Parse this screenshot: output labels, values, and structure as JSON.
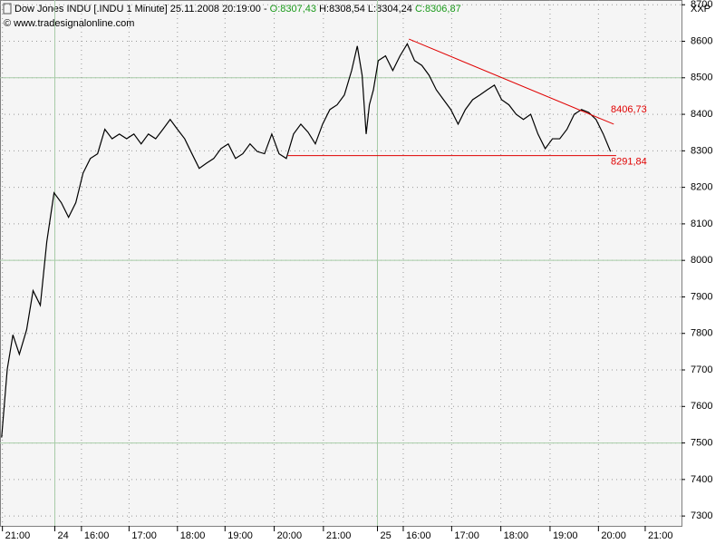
{
  "chart_data": {
    "type": "line",
    "title": "Dow Jones INDU [.INDU  1 Minute] 25.11.2008 20:19:00 -",
    "ohlc_open": "O:8307,43",
    "ohlc_hl": "H:8308,54 L:8304,24",
    "ohlc_close": "C:8306,87",
    "subtitle": "© www.tradesignalonline.com",
    "corner_label": "XXP",
    "color": "#000000",
    "x": [
      -1,
      6,
      13,
      21,
      30,
      38,
      47,
      55,
      64,
      73,
      82,
      91,
      100,
      109,
      118,
      127,
      136,
      145,
      154,
      163,
      172,
      181,
      190,
      199,
      208,
      217,
      226,
      235,
      244,
      253,
      262,
      271,
      280,
      289,
      298,
      307,
      316,
      325,
      334,
      343,
      352,
      361,
      370,
      379,
      388,
      397,
      406,
      415,
      424,
      433,
      440,
      446,
      451,
      455,
      460,
      466,
      475,
      484,
      493,
      502,
      511,
      520,
      529,
      538,
      547,
      556,
      565,
      574,
      583,
      592,
      601,
      610,
      619,
      628,
      637,
      646,
      655,
      664,
      673,
      682,
      691,
      700,
      709,
      718,
      727,
      736,
      745,
      754
    ],
    "values": [
      7515,
      7702,
      7796,
      7743,
      7810,
      7917,
      7877,
      8051,
      8185,
      8158,
      8118,
      8158,
      8239,
      8279,
      8292,
      8359,
      8333,
      8346,
      8333,
      8346,
      8319,
      8346,
      8333,
      8359,
      8386,
      8359,
      8333,
      8292,
      8252,
      8266,
      8279,
      8306,
      8319,
      8279,
      8292,
      8319,
      8298,
      8292,
      8346,
      8292,
      8279,
      8346,
      8373,
      8351,
      8319,
      8373,
      8413,
      8426,
      8453,
      8520,
      8587,
      8507,
      8346,
      8426,
      8467,
      8547,
      8560,
      8520,
      8560,
      8593,
      8547,
      8534,
      8507,
      8467,
      8440,
      8413,
      8373,
      8413,
      8440,
      8453,
      8467,
      8480,
      8440,
      8426,
      8400,
      8386,
      8400,
      8346,
      8306,
      8333,
      8333,
      8359,
      8400,
      8413,
      8405,
      8386,
      8346,
      8298
    ],
    "trendlines": [
      {
        "color": "#e00000",
        "x": [
          504,
          758
        ],
        "values": [
          8606,
          8373
        ],
        "label": "8406,73"
      },
      {
        "color": "#e00000",
        "x": [
          354,
          761
        ],
        "values": [
          8287,
          8287
        ],
        "label": "8291,84"
      }
    ],
    "xlim": [
      -3,
      842
    ],
    "xticks": [
      {
        "value": 0,
        "label": "21:00"
      },
      {
        "value": 65,
        "label": "24"
      },
      {
        "value": 98,
        "label": "16:00"
      },
      {
        "value": 157,
        "label": "17:00"
      },
      {
        "value": 217,
        "label": "18:00"
      },
      {
        "value": 276,
        "label": "19:00"
      },
      {
        "value": 337,
        "label": "20:00"
      },
      {
        "value": 398,
        "label": "21:00"
      },
      {
        "value": 465,
        "label": "25"
      },
      {
        "value": 497,
        "label": "16:00"
      },
      {
        "value": 557,
        "label": "17:00"
      },
      {
        "value": 618,
        "label": "18:00"
      },
      {
        "value": 679,
        "label": "19:00"
      },
      {
        "value": 739,
        "label": "20:00"
      },
      {
        "value": 797,
        "label": "21:00"
      }
    ],
    "day_lines": [
      65,
      465
    ],
    "ylim": [
      7273,
      8713
    ],
    "yticks": [
      7300,
      7400,
      7500,
      7600,
      7700,
      7800,
      7900,
      8000,
      8100,
      8200,
      8300,
      8400,
      8500,
      8600,
      8700
    ],
    "major_ylines": [
      7500,
      8000,
      8500
    ],
    "grid": true
  }
}
